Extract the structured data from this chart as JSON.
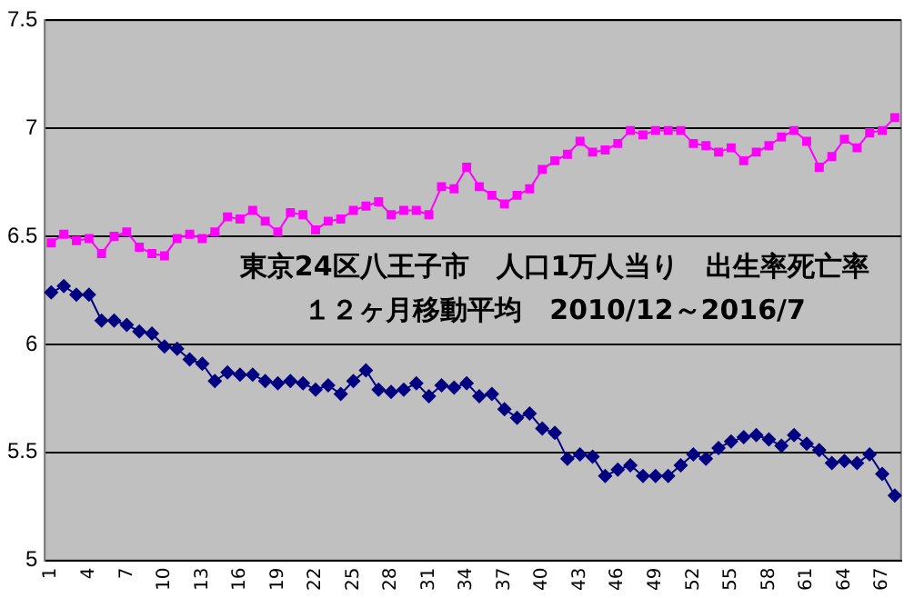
{
  "chart_data": {
    "type": "line",
    "title": "東京24区八王子市　人口1万人当り　出生率死亡率",
    "subtitle": "１２ヶ月移動平均　2010/12～2016/7",
    "categories": [
      "1",
      null,
      null,
      "4",
      null,
      null,
      "7",
      null,
      null,
      "10",
      null,
      null,
      "13",
      null,
      null,
      "16",
      null,
      null,
      "19",
      null,
      null,
      "22",
      null,
      null,
      "25",
      null,
      null,
      "28",
      null,
      null,
      "31",
      null,
      null,
      "34",
      null,
      null,
      "37",
      null,
      null,
      "40",
      null,
      null,
      "43",
      null,
      null,
      "46",
      null,
      null,
      "49",
      null,
      null,
      "52",
      null,
      null,
      "55",
      null,
      null,
      "58",
      null,
      null,
      "61",
      null,
      null,
      "64",
      null,
      null,
      "67",
      null
    ],
    "series": [
      {
        "color": "#ff00ff",
        "marker": "square",
        "values": [
          6.47,
          6.51,
          6.48,
          6.49,
          6.42,
          6.5,
          6.52,
          6.45,
          6.42,
          6.41,
          6.49,
          6.51,
          6.49,
          6.52,
          6.59,
          6.58,
          6.62,
          6.57,
          6.52,
          6.61,
          6.6,
          6.53,
          6.57,
          6.58,
          6.62,
          6.64,
          6.66,
          6.6,
          6.62,
          6.62,
          6.6,
          6.73,
          6.72,
          6.82,
          6.73,
          6.69,
          6.65,
          6.69,
          6.72,
          6.81,
          6.85,
          6.88,
          6.94,
          6.89,
          6.9,
          6.93,
          6.99,
          6.97,
          6.99,
          6.99,
          6.99,
          6.93,
          6.92,
          6.89,
          6.91,
          6.85,
          6.89,
          6.92,
          6.96,
          6.99,
          6.94,
          6.82,
          6.87,
          6.95,
          6.91,
          6.98,
          6.99,
          7.05
        ]
      },
      {
        "color": "#000080",
        "marker": "diamond",
        "values": [
          6.24,
          6.27,
          6.23,
          6.23,
          6.11,
          6.11,
          6.09,
          6.06,
          6.05,
          5.99,
          5.98,
          5.93,
          5.91,
          5.83,
          5.87,
          5.86,
          5.86,
          5.83,
          5.82,
          5.83,
          5.82,
          5.79,
          5.81,
          5.77,
          5.83,
          5.88,
          5.79,
          5.78,
          5.79,
          5.82,
          5.76,
          5.81,
          5.8,
          5.82,
          5.76,
          5.77,
          5.7,
          5.66,
          5.68,
          5.61,
          5.59,
          5.47,
          5.49,
          5.48,
          5.39,
          5.42,
          5.44,
          5.39,
          5.39,
          5.39,
          5.44,
          5.49,
          5.47,
          5.52,
          5.55,
          5.57,
          5.58,
          5.56,
          5.53,
          5.58,
          5.54,
          5.51,
          5.45,
          5.46,
          5.45,
          5.49,
          5.4,
          5.3
        ]
      }
    ],
    "ylim": [
      5,
      7.5
    ],
    "yticks": [
      5,
      5.5,
      6,
      6.5,
      7,
      7.5
    ],
    "grid": "y",
    "legend": false,
    "line_style": "solid"
  }
}
